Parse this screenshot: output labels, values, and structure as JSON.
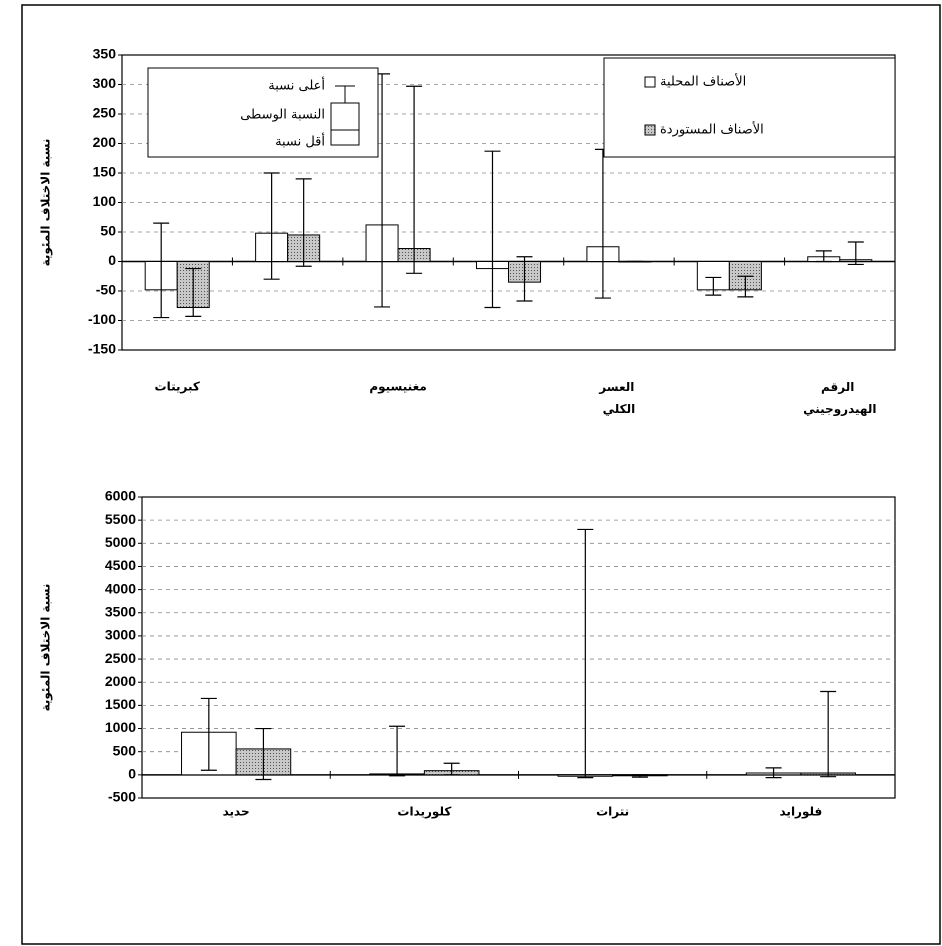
{
  "chart_data": [
    {
      "type": "bar",
      "y_label": "نسبة الاختلاف المئوية",
      "categories": [
        "كبريتات",
        null,
        "مغنيسيوم",
        null,
        "العسر الكلي",
        null,
        "الرقم الهيدروجيني"
      ],
      "series": [
        {
          "name": "الأصناف المحلية",
          "color": "#ffffff",
          "pattern": "none",
          "values": [
            -48,
            48,
            62,
            -12,
            25,
            -48,
            8
          ],
          "high": [
            65,
            150,
            318,
            187,
            190,
            -27,
            18
          ],
          "low": [
            -95,
            -30,
            -77,
            -78,
            -62,
            -57,
            0
          ]
        },
        {
          "name": "الأصناف المستوردة",
          "color": "#c8c8c8",
          "pattern": "dotted",
          "values": [
            -78,
            45,
            22,
            -35,
            0,
            -48,
            3
          ],
          "high": [
            -12,
            140,
            297,
            8,
            0,
            -25,
            33
          ],
          "low": [
            -93,
            -8,
            -20,
            -67,
            0,
            -60,
            -5
          ]
        }
      ],
      "ylim": [
        -150,
        350
      ],
      "yticks": [
        -150,
        -100,
        -50,
        0,
        50,
        100,
        150,
        200,
        250,
        300,
        350
      ],
      "grid": true,
      "legend": "top-right",
      "error_legend": {
        "high": "أعلى نسبة",
        "median": "النسبة الوسطى",
        "low": "أقل نسبة"
      }
    },
    {
      "type": "bar",
      "y_label": "نسبة الاختلاف المئوية",
      "categories": [
        "حديد",
        "كلوريدات",
        "نترات",
        "فلوراید"
      ],
      "series": [
        {
          "color": "#ffffff",
          "pattern": "none",
          "values": [
            920,
            20,
            -30,
            40
          ],
          "high": [
            1650,
            1050,
            5300,
            150
          ],
          "low": [
            100,
            -20,
            -60,
            -60
          ]
        },
        {
          "color": "#c8c8c8",
          "pattern": "dotted",
          "values": [
            560,
            90,
            -20,
            40
          ],
          "high": [
            1000,
            250,
            0,
            1800
          ],
          "low": [
            -100,
            0,
            -50,
            -40
          ]
        }
      ],
      "ylim": [
        -500,
        6000
      ],
      "yticks": [
        -500,
        0,
        500,
        1000,
        1500,
        2000,
        2500,
        3000,
        3500,
        4000,
        4500,
        5000,
        5500,
        6000
      ],
      "grid": true
    }
  ]
}
